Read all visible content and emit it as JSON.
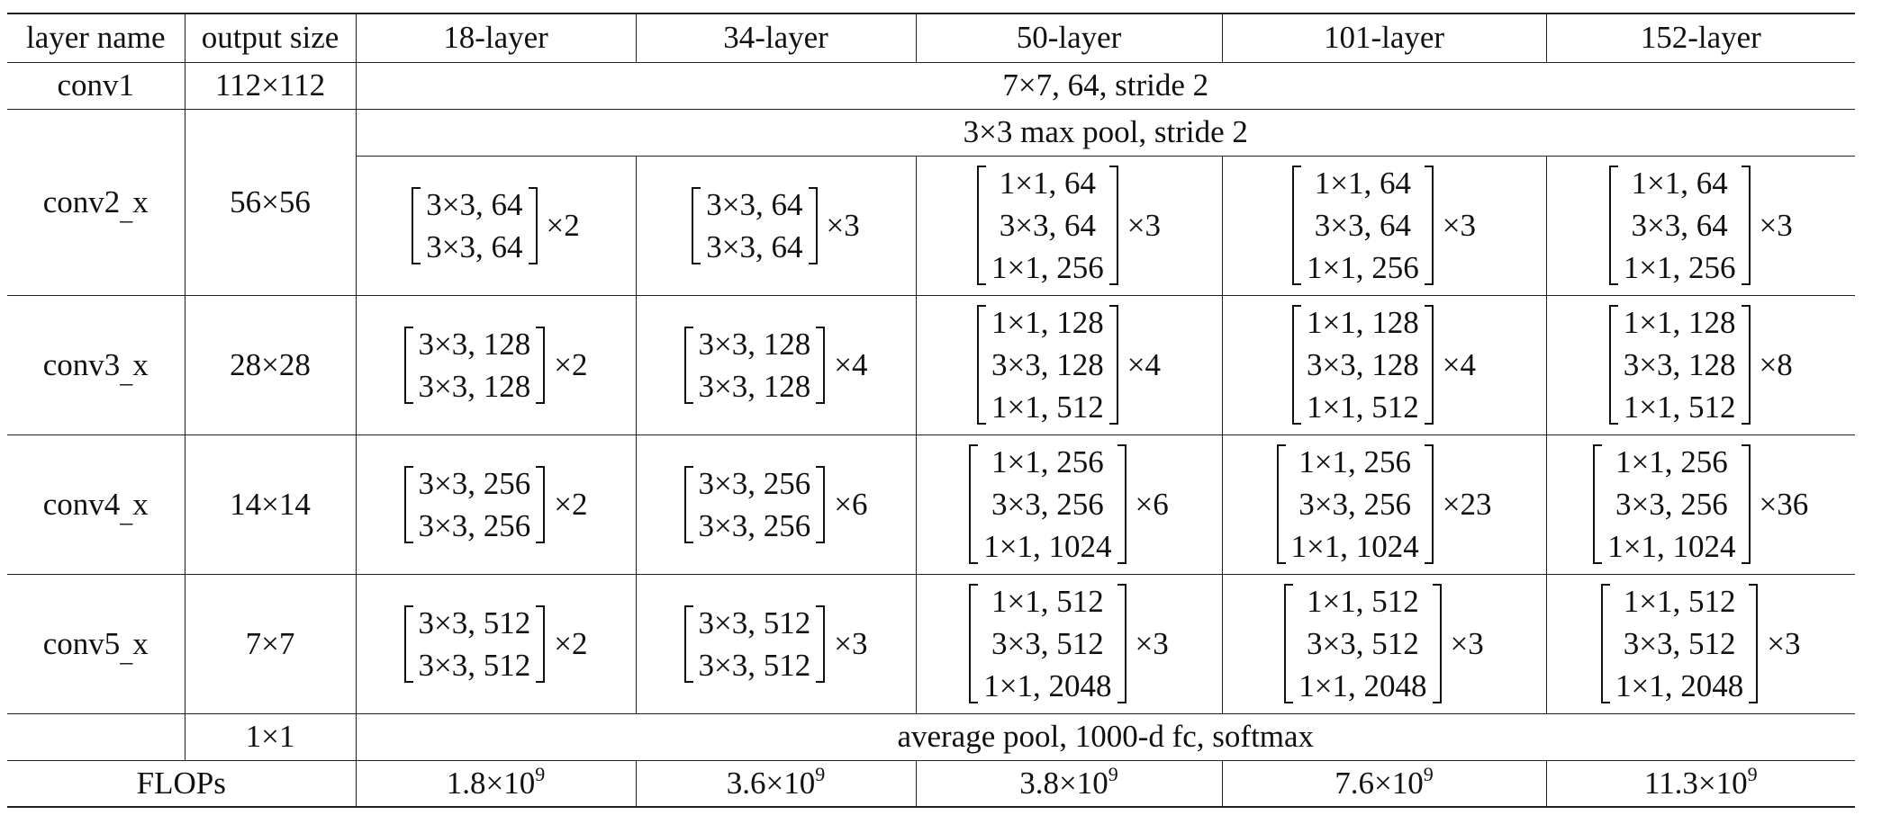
{
  "headers": [
    "layer name",
    "output size",
    "18-layer",
    "34-layer",
    "50-layer",
    "101-layer",
    "152-layer"
  ],
  "conv1": {
    "name": "conv1",
    "size": "112×112",
    "spec": "7×7, 64, stride 2"
  },
  "conv2": {
    "name": "conv2_x",
    "size": "56×56",
    "pool": "3×3 max pool, stride 2",
    "blocks": [
      {
        "lines": [
          "3×3, 64",
          "3×3, 64"
        ],
        "mult": "×2"
      },
      {
        "lines": [
          "3×3, 64",
          "3×3, 64"
        ],
        "mult": "×3"
      },
      {
        "lines": [
          "1×1, 64",
          "3×3, 64",
          "1×1, 256"
        ],
        "mult": "×3"
      },
      {
        "lines": [
          "1×1, 64",
          "3×3, 64",
          "1×1, 256"
        ],
        "mult": "×3"
      },
      {
        "lines": [
          "1×1, 64",
          "3×3, 64",
          "1×1, 256"
        ],
        "mult": "×3"
      }
    ]
  },
  "conv3": {
    "name": "conv3_x",
    "size": "28×28",
    "blocks": [
      {
        "lines": [
          "3×3, 128",
          "3×3, 128"
        ],
        "mult": "×2"
      },
      {
        "lines": [
          "3×3, 128",
          "3×3, 128"
        ],
        "mult": "×4"
      },
      {
        "lines": [
          "1×1, 128",
          "3×3, 128",
          "1×1, 512"
        ],
        "mult": "×4"
      },
      {
        "lines": [
          "1×1, 128",
          "3×3, 128",
          "1×1, 512"
        ],
        "mult": "×4"
      },
      {
        "lines": [
          "1×1, 128",
          "3×3, 128",
          "1×1, 512"
        ],
        "mult": "×8"
      }
    ]
  },
  "conv4": {
    "name": "conv4_x",
    "size": "14×14",
    "blocks": [
      {
        "lines": [
          "3×3, 256",
          "3×3, 256"
        ],
        "mult": "×2"
      },
      {
        "lines": [
          "3×3, 256",
          "3×3, 256"
        ],
        "mult": "×6"
      },
      {
        "lines": [
          "1×1, 256",
          "3×3, 256",
          "1×1, 1024"
        ],
        "mult": "×6"
      },
      {
        "lines": [
          "1×1, 256",
          "3×3, 256",
          "1×1, 1024"
        ],
        "mult": "×23"
      },
      {
        "lines": [
          "1×1, 256",
          "3×3, 256",
          "1×1, 1024"
        ],
        "mult": "×36"
      }
    ]
  },
  "conv5": {
    "name": "conv5_x",
    "size": "7×7",
    "blocks": [
      {
        "lines": [
          "3×3, 512",
          "3×3, 512"
        ],
        "mult": "×2"
      },
      {
        "lines": [
          "3×3, 512",
          "3×3, 512"
        ],
        "mult": "×3"
      },
      {
        "lines": [
          "1×1, 512",
          "3×3, 512",
          "1×1, 2048"
        ],
        "mult": "×3"
      },
      {
        "lines": [
          "1×1, 512",
          "3×3, 512",
          "1×1, 2048"
        ],
        "mult": "×3"
      },
      {
        "lines": [
          "1×1, 512",
          "3×3, 512",
          "1×1, 2048"
        ],
        "mult": "×3"
      }
    ]
  },
  "final": {
    "name": "",
    "size": "1×1",
    "spec": "average pool, 1000-d fc, softmax"
  },
  "flops": {
    "label": "FLOPs",
    "exp": "9",
    "values": [
      "1.8×10",
      "3.6×10",
      "3.8×10",
      "7.6×10",
      "11.3×10"
    ]
  }
}
